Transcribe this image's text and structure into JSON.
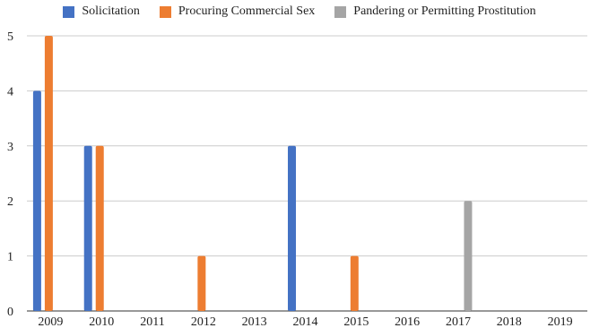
{
  "chart_data": {
    "type": "bar",
    "categories": [
      "2009",
      "2010",
      "2011",
      "2012",
      "2013",
      "2014",
      "2015",
      "2016",
      "2017",
      "2018",
      "2019"
    ],
    "series": [
      {
        "name": "Solicitation",
        "color": "#4472c4",
        "values": [
          4,
          3,
          0,
          0,
          0,
          3,
          0,
          0,
          0,
          0,
          0
        ]
      },
      {
        "name": "Procuring Commercial Sex",
        "color": "#ed7d31",
        "values": [
          5,
          3,
          0,
          1,
          0,
          0,
          1,
          0,
          0,
          0,
          0
        ]
      },
      {
        "name": "Pandering or Permitting Prostitution",
        "color": "#a5a5a5",
        "values": [
          0,
          0,
          0,
          0,
          0,
          0,
          0,
          0,
          2,
          0,
          0
        ]
      }
    ],
    "ylim": [
      0,
      5
    ],
    "yticks": [
      "0",
      "1",
      "2",
      "3",
      "4",
      "5"
    ],
    "grid": true,
    "legend_position": "top"
  }
}
